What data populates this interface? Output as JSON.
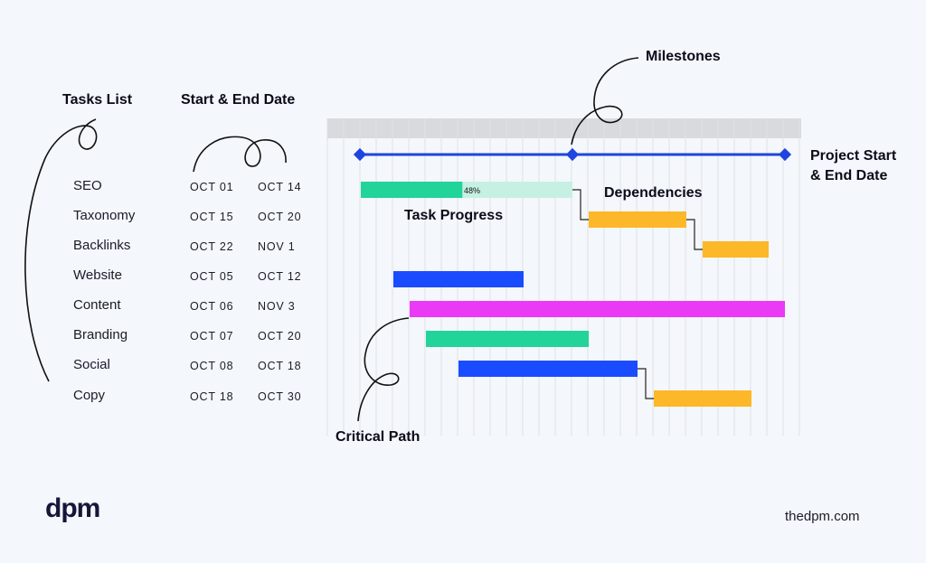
{
  "headings": {
    "tasks": "Tasks List",
    "dates": "Start & End Date"
  },
  "tasks": [
    {
      "name": "SEO",
      "start": "OCT 01",
      "end": "OCT 14"
    },
    {
      "name": "Taxonomy",
      "start": "OCT 15",
      "end": "OCT 20"
    },
    {
      "name": "Backlinks",
      "start": "OCT 22",
      "end": "NOV 1"
    },
    {
      "name": "Website",
      "start": "OCT 05",
      "end": "OCT 12"
    },
    {
      "name": "Content",
      "start": "OCT 06",
      "end": "NOV 3"
    },
    {
      "name": "Branding",
      "start": "OCT 07",
      "end": "OCT 20"
    },
    {
      "name": "Social",
      "start": "OCT 08",
      "end": "OCT 18"
    },
    {
      "name": "Copy",
      "start": "OCT 18",
      "end": "OCT 30"
    }
  ],
  "annotations": {
    "milestones": "Milestones",
    "project_start_end": "Project Start",
    "project_start_end_2": "& End Date",
    "dependencies": "Dependencies",
    "task_progress": "Task Progress",
    "critical_path": "Critical Path"
  },
  "progress": {
    "task": "SEO",
    "value": 48,
    "label": "48%"
  },
  "colors": {
    "green": "#22d39a",
    "green_light": "#c5f0e2",
    "orange": "#fcb828",
    "blue": "#1a4cff",
    "magenta": "#ea3af5",
    "milestone_line": "#1f44e0",
    "grid_header": "#d9dadd"
  },
  "branding": {
    "logo": "dpm",
    "site": "thedpm.com"
  }
}
